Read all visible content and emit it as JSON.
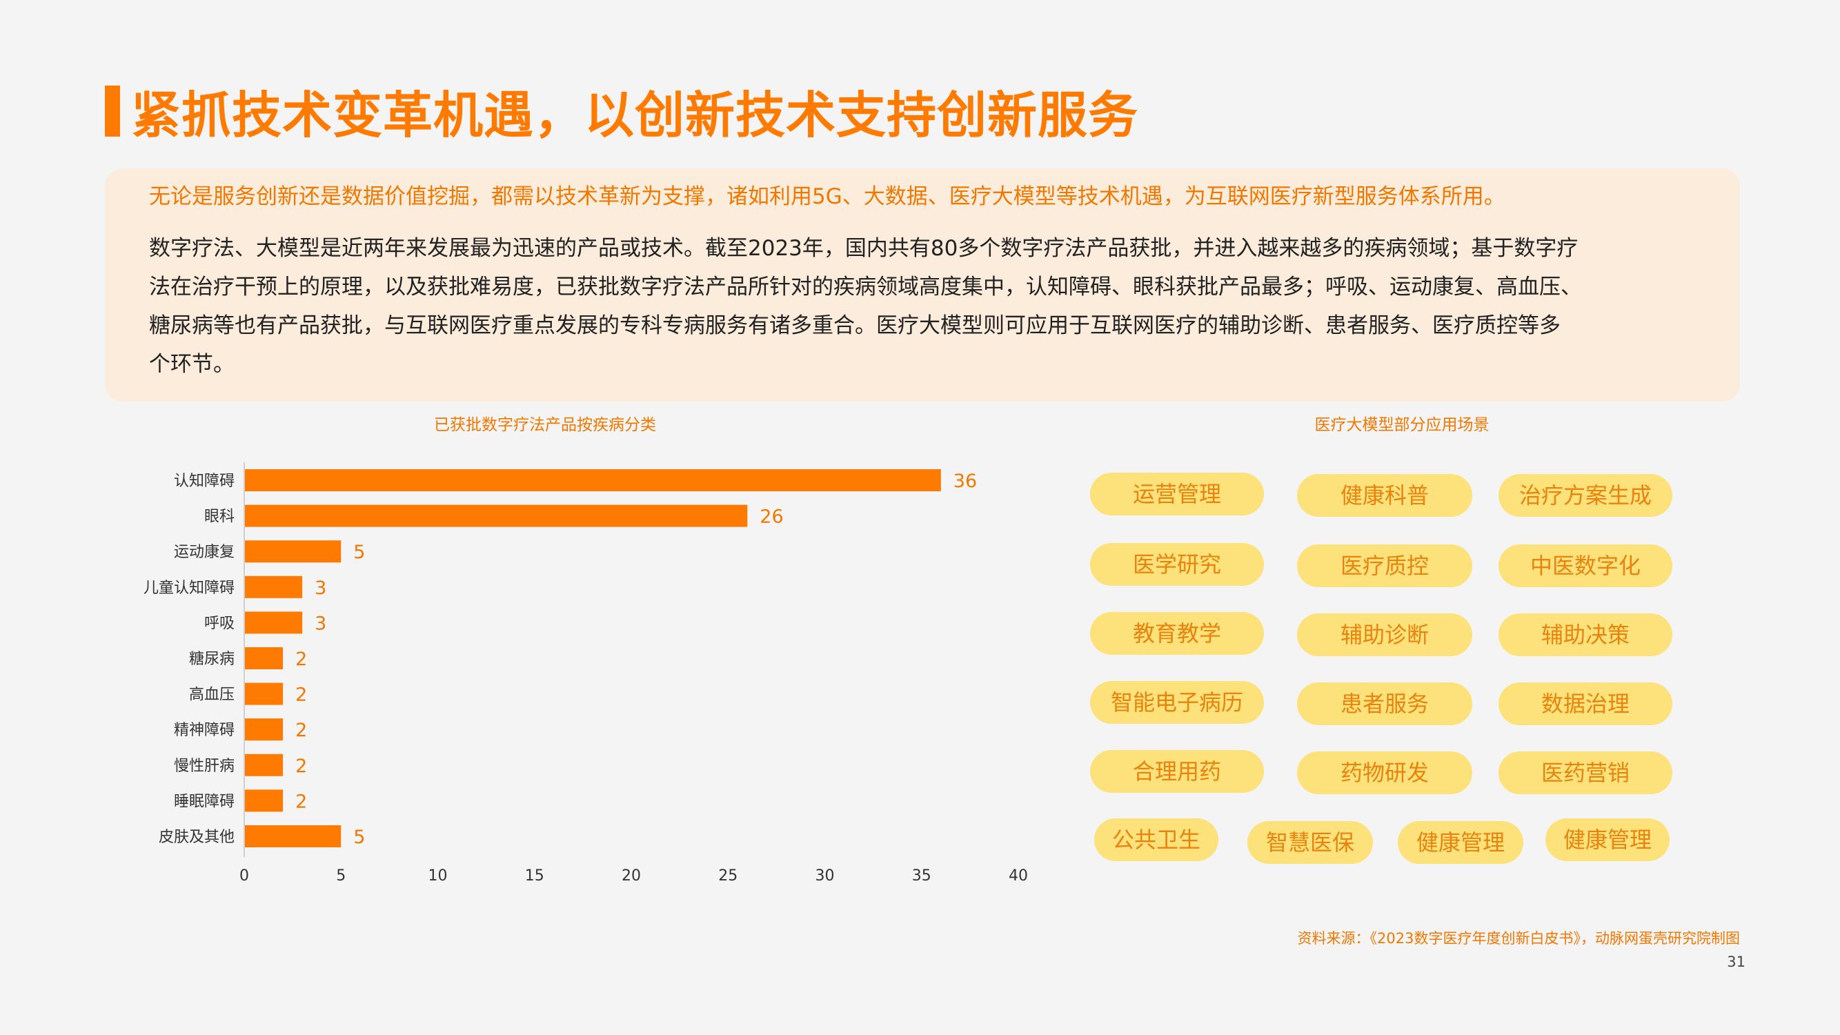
{
  "header": {
    "title": "紧抓技术变革机遇，以创新技术支持创新服务"
  },
  "summary": {
    "highlight": "无论是服务创新还是数据价值挖掘，都需以技术革新为支撑，诸如利用5G、大数据、医疗大模型等技术机遇，为互联网医疗新型服务体系所用。",
    "body_lines": [
      "数字疗法、大模型是近两年来发展最为迅速的产品或技术。截至2023年，国内共有80多个数字疗法产品获批，并进入越来越多的疾病领域；基于数字疗",
      "法在治疗干预上的原理，以及获批难易度，已获批数字疗法产品所针对的疾病领域高度集中，认知障碍、眼科获批产品最多；呼吸、运动康复、高血压、",
      "糖尿病等也有产品获批，与互联网医疗重点发展的专科专病服务有诸多重合。医疗大模型则可应用于互联网医疗的辅助诊断、患者服务、医疗质控等多",
      "个环节。"
    ]
  },
  "chart_data": {
    "type": "bar",
    "orientation": "horizontal",
    "title": "已获批数字疗法产品按疾病分类",
    "categories": [
      "认知障碍",
      "眼科",
      "运动康复",
      "儿童认知障碍",
      "呼吸",
      "糖尿病",
      "高血压",
      "精神障碍",
      "慢性肝病",
      "睡眠障碍",
      "皮肤及其他"
    ],
    "values": [
      36,
      26,
      5,
      3,
      3,
      2,
      2,
      2,
      2,
      2,
      5
    ],
    "xlim": [
      0,
      40
    ],
    "xticks": [
      0,
      5,
      10,
      15,
      20,
      25,
      30,
      35,
      40
    ],
    "xlabel": "",
    "ylabel": "",
    "grid": false,
    "bar_color": "#ff7a00",
    "label_color": "#f07800"
  },
  "scenarios": {
    "title": "医疗大模型部分应用场景",
    "tags": [
      "运营管理",
      "健康科普",
      "治疗方案生成",
      "医学研究",
      "医疗质控",
      "中医数字化",
      "教育教学",
      "辅助诊断",
      "辅助决策",
      "智能电子病历",
      "患者服务",
      "数据治理",
      "合理用药",
      "药物研发",
      "医药营销",
      "公共卫生",
      "智慧医保",
      "健康管理",
      "健康管理"
    ]
  },
  "footer": {
    "source": "资料来源：《2023数字医疗年度创新白皮书》，动脉网蛋壳研究院制图",
    "page_number": "31"
  },
  "colors": {
    "accent": "#ff7a00",
    "tag_bg": "#fde17a",
    "tag_text": "#e8840e",
    "summary_bg": "#fbecdc"
  }
}
